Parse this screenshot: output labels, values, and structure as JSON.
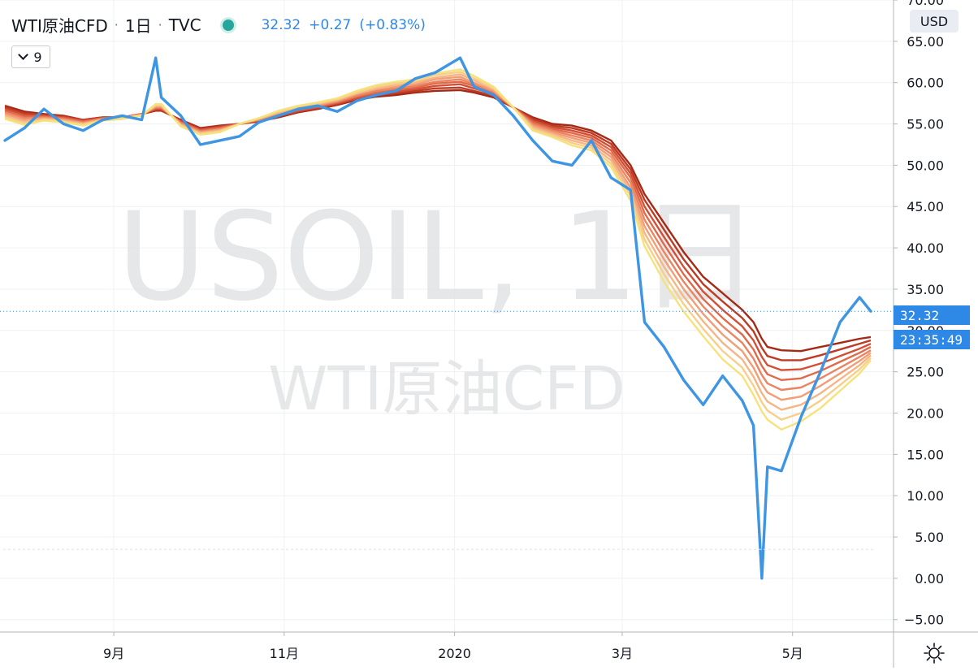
{
  "header": {
    "symbol": "WTI原油CFD",
    "interval": "1日",
    "exchange": "TVC",
    "last_price": "32.32",
    "change": "+0.27",
    "change_percent": "(+0.83%)",
    "ribbon_toggle_label": "9",
    "currency": "USD"
  },
  "watermark": {
    "line1": "USOIL, 1日",
    "line2": "WTI原油CFD"
  },
  "price_scale": {
    "current_price_label": "32.32",
    "countdown_label": "23:35:49"
  },
  "colors": {
    "price_line": "#3d95e3",
    "ribbon": [
      "#a42a16",
      "#bd3a23",
      "#d24f36",
      "#e0694a",
      "#eb8461",
      "#f19d76",
      "#f5b686",
      "#f8cf8a",
      "#f5e27a"
    ],
    "accent": "#2e88e6"
  },
  "icons": {
    "settings": "gear-icon",
    "ribbon_toggle": "chevron-down-icon"
  },
  "chart_data": {
    "type": "line",
    "x_tick_labels": [
      "9月",
      "11月",
      "2020",
      "3月",
      "5月"
    ],
    "y_tick_labels": [
      "70.00",
      "65.00",
      "60.00",
      "55.00",
      "50.00",
      "45.00",
      "40.00",
      "35.00",
      "30.00",
      "25.00",
      "20.00",
      "15.00",
      "10.00",
      "5.00",
      "0.00",
      "−5.00"
    ],
    "ylim": [
      -6.5,
      70
    ],
    "grid": true,
    "current_price": 32.32,
    "x": [
      "2019-07-24",
      "2019-07-31",
      "2019-08-07",
      "2019-08-14",
      "2019-08-21",
      "2019-08-28",
      "2019-09-04",
      "2019-09-11",
      "2019-09-16",
      "2019-09-18",
      "2019-09-25",
      "2019-10-02",
      "2019-10-09",
      "2019-10-16",
      "2019-10-23",
      "2019-10-30",
      "2019-11-06",
      "2019-11-13",
      "2019-11-20",
      "2019-11-27",
      "2019-12-04",
      "2019-12-11",
      "2019-12-18",
      "2019-12-25",
      "2020-01-03",
      "2020-01-08",
      "2020-01-15",
      "2020-01-22",
      "2020-01-29",
      "2020-02-05",
      "2020-02-12",
      "2020-02-19",
      "2020-02-26",
      "2020-03-04",
      "2020-03-09",
      "2020-03-16",
      "2020-03-23",
      "2020-03-30",
      "2020-04-06",
      "2020-04-13",
      "2020-04-17",
      "2020-04-20",
      "2020-04-22",
      "2020-04-27",
      "2020-05-04",
      "2020-05-11",
      "2020-05-18",
      "2020-05-25",
      "2020-05-29"
    ],
    "series": [
      {
        "kind": "price",
        "values": [
          53.0,
          54.5,
          56.8,
          55.0,
          54.2,
          55.5,
          56.0,
          55.5,
          63.0,
          58.2,
          56.0,
          52.5,
          53.0,
          53.5,
          55.2,
          56.0,
          56.8,
          57.2,
          56.5,
          57.8,
          58.5,
          59.0,
          60.5,
          61.2,
          63.0,
          59.5,
          58.5,
          56.0,
          53.0,
          50.5,
          50.0,
          53.0,
          48.5,
          47.0,
          31.0,
          28.0,
          24.0,
          21.0,
          24.5,
          21.5,
          18.5,
          0.0,
          13.5,
          13.0,
          19.5,
          25.0,
          31.0,
          34.0,
          32.32
        ]
      },
      {
        "kind": "ema",
        "period_rank": 1,
        "values": [
          57.2,
          56.5,
          56.2,
          56.0,
          55.5,
          55.8,
          55.8,
          56.2,
          56.6,
          56.6,
          55.5,
          54.5,
          54.8,
          55.0,
          55.3,
          55.8,
          56.4,
          56.8,
          57.3,
          57.9,
          58.3,
          58.5,
          58.8,
          59.0,
          59.1,
          58.8,
          58.2,
          57.0,
          55.8,
          55.0,
          54.8,
          54.2,
          53.0,
          50.0,
          46.5,
          43.0,
          39.5,
          36.5,
          34.5,
          32.5,
          31.0,
          29.0,
          28.0,
          27.6,
          27.5,
          28.0,
          28.5,
          29.0,
          29.2
        ]
      },
      {
        "kind": "ema",
        "period_rank": 2,
        "values": [
          57.0,
          56.3,
          56.1,
          55.9,
          55.5,
          55.8,
          55.8,
          56.2,
          56.7,
          56.7,
          55.4,
          54.4,
          54.7,
          55.0,
          55.4,
          55.9,
          56.5,
          56.9,
          57.4,
          58.0,
          58.5,
          58.7,
          59.0,
          59.3,
          59.4,
          59.0,
          58.4,
          57.0,
          55.6,
          54.8,
          54.5,
          53.9,
          52.6,
          49.5,
          45.8,
          42.2,
          38.6,
          35.6,
          33.5,
          31.5,
          29.9,
          27.9,
          26.9,
          26.4,
          26.4,
          27.0,
          27.7,
          28.4,
          28.8
        ]
      },
      {
        "kind": "ema",
        "period_rank": 3,
        "values": [
          56.8,
          56.1,
          56.0,
          55.8,
          55.4,
          55.7,
          55.8,
          56.2,
          56.8,
          56.8,
          55.3,
          54.3,
          54.6,
          55.0,
          55.4,
          56.0,
          56.6,
          57.0,
          57.5,
          58.1,
          58.7,
          58.9,
          59.2,
          59.6,
          59.8,
          59.3,
          58.6,
          57.0,
          55.4,
          54.6,
          54.2,
          53.6,
          52.2,
          49.0,
          45.0,
          41.3,
          37.7,
          34.7,
          32.5,
          30.5,
          28.8,
          26.8,
          25.8,
          25.2,
          25.3,
          26.0,
          26.9,
          27.8,
          28.4
        ]
      },
      {
        "kind": "ema",
        "period_rank": 4,
        "values": [
          56.6,
          55.9,
          55.9,
          55.7,
          55.3,
          55.7,
          55.8,
          56.2,
          56.9,
          56.9,
          55.2,
          54.2,
          54.5,
          55.0,
          55.5,
          56.1,
          56.7,
          57.1,
          57.6,
          58.3,
          58.8,
          59.1,
          59.4,
          59.9,
          60.1,
          59.6,
          58.7,
          57.0,
          55.2,
          54.4,
          53.9,
          53.3,
          51.8,
          48.5,
          44.2,
          40.4,
          36.8,
          33.8,
          31.5,
          29.5,
          27.7,
          25.7,
          24.7,
          24.0,
          24.2,
          25.1,
          26.2,
          27.3,
          28.0
        ]
      },
      {
        "kind": "ema",
        "period_rank": 5,
        "values": [
          56.4,
          55.7,
          55.8,
          55.6,
          55.2,
          55.6,
          55.7,
          56.1,
          57.0,
          57.0,
          55.1,
          54.1,
          54.4,
          55.0,
          55.5,
          56.2,
          56.8,
          57.2,
          57.7,
          58.4,
          59.0,
          59.3,
          59.6,
          60.1,
          60.4,
          59.8,
          58.9,
          57.0,
          55.0,
          54.2,
          53.6,
          53.0,
          51.4,
          47.9,
          43.4,
          39.5,
          35.9,
          32.9,
          30.5,
          28.5,
          26.6,
          24.6,
          23.6,
          22.8,
          23.1,
          24.2,
          25.5,
          26.8,
          27.6
        ]
      },
      {
        "kind": "ema",
        "period_rank": 6,
        "values": [
          56.2,
          55.5,
          55.7,
          55.5,
          55.1,
          55.6,
          55.7,
          56.1,
          57.1,
          57.1,
          55.0,
          54.0,
          54.3,
          55.0,
          55.6,
          56.3,
          56.9,
          57.3,
          57.8,
          58.6,
          59.2,
          59.5,
          59.8,
          60.4,
          60.7,
          60.0,
          59.0,
          57.0,
          54.8,
          54.0,
          53.3,
          52.7,
          51.0,
          47.3,
          42.6,
          38.6,
          35.0,
          32.0,
          29.5,
          27.5,
          25.5,
          23.5,
          22.5,
          21.6,
          22.0,
          23.3,
          24.8,
          26.3,
          27.3
        ]
      },
      {
        "kind": "ema",
        "period_rank": 7,
        "values": [
          56.0,
          55.3,
          55.6,
          55.4,
          55.0,
          55.5,
          55.7,
          56.1,
          57.2,
          57.2,
          54.9,
          53.9,
          54.2,
          55.0,
          55.6,
          56.4,
          57.0,
          57.4,
          57.9,
          58.7,
          59.3,
          59.7,
          60.0,
          60.6,
          61.0,
          60.3,
          59.2,
          57.0,
          54.6,
          53.8,
          53.0,
          52.4,
          50.6,
          46.8,
          41.8,
          37.7,
          34.1,
          31.1,
          28.5,
          26.5,
          24.4,
          22.4,
          21.4,
          20.4,
          21.0,
          22.4,
          24.1,
          25.8,
          27.0
        ]
      },
      {
        "kind": "ema",
        "period_rank": 8,
        "values": [
          55.8,
          55.1,
          55.5,
          55.3,
          54.9,
          55.5,
          55.7,
          56.1,
          57.3,
          57.3,
          54.8,
          53.8,
          54.1,
          55.0,
          55.7,
          56.5,
          57.1,
          57.5,
          58.0,
          58.8,
          59.5,
          59.9,
          60.2,
          60.9,
          61.3,
          60.5,
          59.3,
          57.0,
          54.4,
          53.6,
          52.7,
          52.1,
          50.2,
          46.3,
          41.0,
          36.8,
          33.2,
          30.2,
          27.5,
          25.5,
          23.3,
          21.3,
          20.3,
          19.2,
          20.0,
          21.5,
          23.4,
          25.3,
          26.7
        ]
      },
      {
        "kind": "ema",
        "period_rank": 9,
        "values": [
          55.6,
          54.9,
          55.4,
          55.2,
          54.8,
          55.4,
          55.6,
          56.0,
          57.4,
          57.4,
          54.7,
          53.7,
          54.0,
          55.0,
          55.7,
          56.6,
          57.2,
          57.6,
          58.1,
          59.0,
          59.7,
          60.1,
          60.4,
          61.1,
          61.6,
          60.8,
          59.5,
          57.0,
          54.2,
          53.4,
          52.4,
          51.8,
          49.8,
          45.7,
          40.2,
          35.9,
          32.3,
          29.3,
          26.5,
          24.5,
          22.2,
          20.2,
          19.2,
          18.0,
          19.0,
          20.6,
          22.7,
          24.8,
          26.4
        ]
      }
    ]
  }
}
